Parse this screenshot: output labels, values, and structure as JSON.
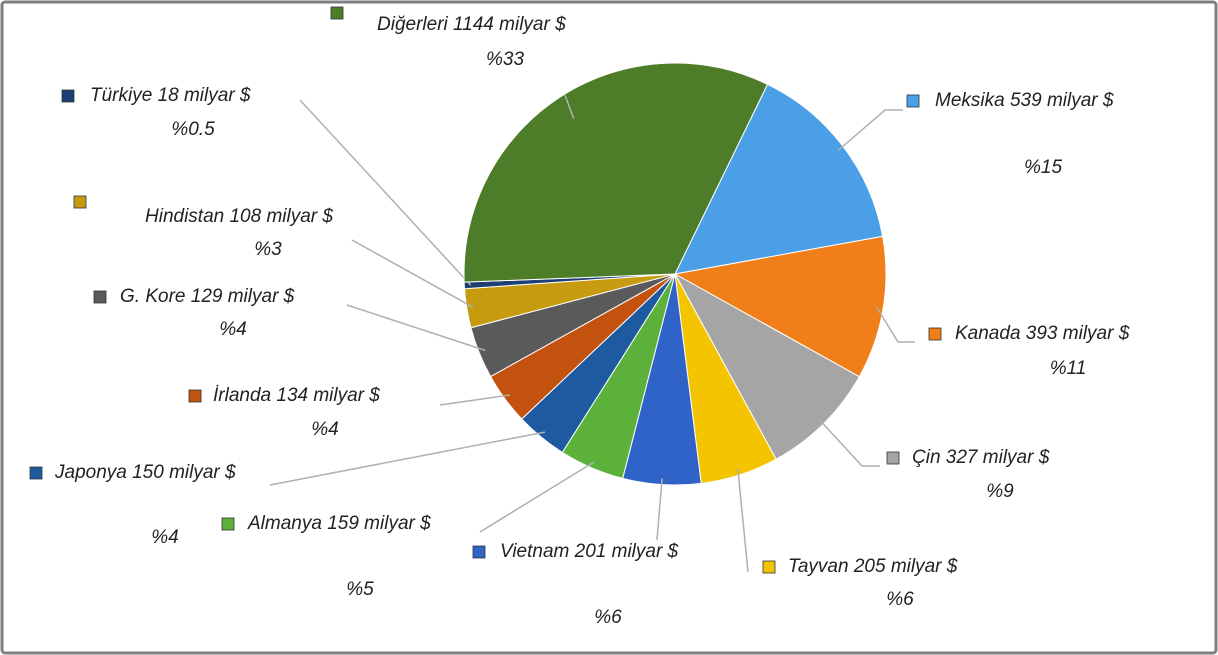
{
  "chart_data": {
    "type": "pie",
    "categories": [
      "Meksika 539 milyar $",
      "Kanada 393 milyar $",
      "Çin 327 milyar $",
      "Tayvan 205 milyar $",
      "Vietnam 201 milyar $",
      "Almanya 159 milyar $",
      "Japonya 150 milyar $",
      "İrlanda 134 milyar $",
      "G. Kore 129 milyar $",
      "Hindistan 108 milyar $",
      "Türkiye 18 milyar $",
      "Diğerleri 1144 milyar $"
    ],
    "values": [
      15,
      11,
      9,
      6,
      6,
      5,
      4,
      4,
      4,
      3,
      0.5,
      33
    ],
    "value_labels": [
      "%15",
      "%11",
      "%9",
      "%6",
      "%6",
      "%5",
      "%4",
      "%4",
      "%4",
      "%3",
      "%0.5",
      "%33"
    ],
    "colors": [
      "#4a9fe6",
      "#f07f1a",
      "#a5a5a5",
      "#f5c400",
      "#2f63c8",
      "#5cb13a",
      "#1e5aa0",
      "#c4520f",
      "#5a5a5a",
      "#c69b10",
      "#1d3f73",
      "#4e7d2a"
    ]
  }
}
